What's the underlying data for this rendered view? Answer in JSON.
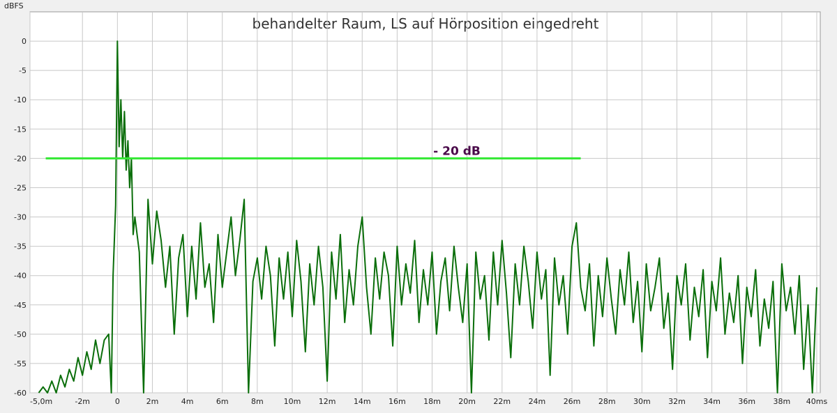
{
  "chart_data": {
    "type": "line",
    "title": "behandelter Raum, LS auf Hörposition eingedreht",
    "y_label": "dBFS",
    "xlim": [
      -5,
      40.2
    ],
    "ylim": [
      -60,
      5
    ],
    "xticks": [
      {
        "value": -5,
        "label": "-5,0m"
      },
      {
        "value": -2,
        "label": "-2m"
      },
      0,
      {
        "value": 2,
        "label": "2m"
      },
      {
        "value": 4,
        "label": "4m"
      },
      {
        "value": 6,
        "label": "6m"
      },
      {
        "value": 8,
        "label": "8m"
      },
      {
        "value": 10,
        "label": "10m"
      },
      {
        "value": 12,
        "label": "12m"
      },
      {
        "value": 14,
        "label": "14m"
      },
      {
        "value": 16,
        "label": "16m"
      },
      {
        "value": 18,
        "label": "18m"
      },
      {
        "value": 20,
        "label": "20m"
      },
      {
        "value": 22,
        "label": "22m"
      },
      {
        "value": 24,
        "label": "24m"
      },
      {
        "value": 26,
        "label": "26m"
      },
      {
        "value": 28,
        "label": "28m"
      },
      {
        "value": 30,
        "label": "30m"
      },
      {
        "value": 32,
        "label": "32m"
      },
      {
        "value": 34,
        "label": "34m"
      },
      {
        "value": 36,
        "label": "36m"
      },
      {
        "value": 38,
        "label": "38m"
      },
      {
        "value": 40,
        "label": "40ms"
      }
    ],
    "yticks": [
      0,
      -5,
      -10,
      -15,
      -20,
      -25,
      -30,
      -35,
      -40,
      -45,
      -50,
      -55,
      -60
    ],
    "grid": true,
    "x": [
      -4.5,
      -4.25,
      -4,
      -3.75,
      -3.5,
      -3.25,
      -3,
      -2.75,
      -2.5,
      -2.25,
      -2,
      -1.75,
      -1.5,
      -1.25,
      -1,
      -0.75,
      -0.5,
      -0.35,
      -0.25,
      -0.1,
      0,
      0.1,
      0.2,
      0.3,
      0.4,
      0.5,
      0.6,
      0.7,
      0.8,
      0.9,
      1,
      1.25,
      1.5,
      1.75,
      2,
      2.25,
      2.5,
      2.75,
      3,
      3.25,
      3.5,
      3.75,
      4,
      4.25,
      4.5,
      4.75,
      5,
      5.25,
      5.5,
      5.75,
      6,
      6.25,
      6.5,
      6.75,
      7,
      7.25,
      7.5,
      7.75,
      8,
      8.25,
      8.5,
      8.75,
      9,
      9.25,
      9.5,
      9.75,
      10,
      10.25,
      10.5,
      10.75,
      11,
      11.25,
      11.5,
      11.75,
      12,
      12.25,
      12.5,
      12.75,
      13,
      13.25,
      13.5,
      13.75,
      14,
      14.25,
      14.5,
      14.75,
      15,
      15.25,
      15.5,
      15.75,
      16,
      16.25,
      16.5,
      16.75,
      17,
      17.25,
      17.5,
      17.75,
      18,
      18.25,
      18.5,
      18.75,
      19,
      19.25,
      19.5,
      19.75,
      20,
      20.25,
      20.5,
      20.75,
      21,
      21.25,
      21.5,
      21.75,
      22,
      22.25,
      22.5,
      22.75,
      23,
      23.25,
      23.5,
      23.75,
      24,
      24.25,
      24.5,
      24.75,
      25,
      25.25,
      25.5,
      25.75,
      26,
      26.25,
      26.5,
      26.75,
      27,
      27.25,
      27.5,
      27.75,
      28,
      28.25,
      28.5,
      28.75,
      29,
      29.25,
      29.5,
      29.75,
      30,
      30.25,
      30.5,
      30.75,
      31,
      31.25,
      31.5,
      31.75,
      32,
      32.25,
      32.5,
      32.75,
      33,
      33.25,
      33.5,
      33.75,
      34,
      34.25,
      34.5,
      34.75,
      35,
      35.25,
      35.5,
      35.75,
      36,
      36.25,
      36.5,
      36.75,
      37,
      37.25,
      37.5,
      37.75,
      38,
      38.25,
      38.5,
      38.75,
      39,
      39.25,
      39.5,
      39.75,
      40
    ],
    "series": [
      {
        "color": "#0a6e0a",
        "values": [
          -60,
          -59,
          -60,
          -58,
          -60,
          -57,
          -59,
          -56,
          -58,
          -54,
          -57,
          -53,
          -56,
          -51,
          -55,
          -51,
          -50,
          -60,
          -40,
          -28,
          0,
          -18,
          -10,
          -20,
          -12,
          -22,
          -17,
          -25,
          -20,
          -33,
          -30,
          -36,
          -60,
          -27,
          -38,
          -29,
          -34,
          -42,
          -35,
          -50,
          -37,
          -33,
          -47,
          -35,
          -44,
          -31,
          -42,
          -38,
          -48,
          -33,
          -42,
          -36,
          -30,
          -40,
          -34,
          -27,
          -60,
          -41,
          -37,
          -44,
          -35,
          -40,
          -52,
          -37,
          -44,
          -36,
          -47,
          -34,
          -41,
          -53,
          -38,
          -45,
          -35,
          -42,
          -58,
          -36,
          -44,
          -33,
          -48,
          -39,
          -45,
          -35,
          -30,
          -42,
          -50,
          -37,
          -44,
          -36,
          -40,
          -52,
          -35,
          -45,
          -38,
          -43,
          -34,
          -48,
          -39,
          -45,
          -36,
          -50,
          -41,
          -37,
          -46,
          -35,
          -42,
          -48,
          -38,
          -60,
          -36,
          -44,
          -40,
          -51,
          -36,
          -45,
          -34,
          -43,
          -54,
          -38,
          -45,
          -35,
          -41,
          -49,
          -36,
          -44,
          -39,
          -57,
          -37,
          -45,
          -40,
          -50,
          -35,
          -31,
          -42,
          -46,
          -38,
          -52,
          -40,
          -47,
          -37,
          -44,
          -50,
          -39,
          -45,
          -36,
          -48,
          -41,
          -53,
          -38,
          -46,
          -42,
          -37,
          -49,
          -43,
          -56,
          -40,
          -45,
          -38,
          -51,
          -42,
          -47,
          -39,
          -54,
          -41,
          -46,
          -37,
          -50,
          -43,
          -48,
          -40,
          -55,
          -42,
          -47,
          -39,
          -52,
          -44,
          -49,
          -41,
          -60,
          -38,
          -46,
          -42,
          -50,
          -40,
          -56,
          -45,
          -60,
          -42
        ]
      }
    ],
    "reference_line": {
      "y": -20,
      "x": [
        -4.1,
        26.5
      ],
      "color": "#33e833",
      "label": "- 20 dB"
    }
  }
}
